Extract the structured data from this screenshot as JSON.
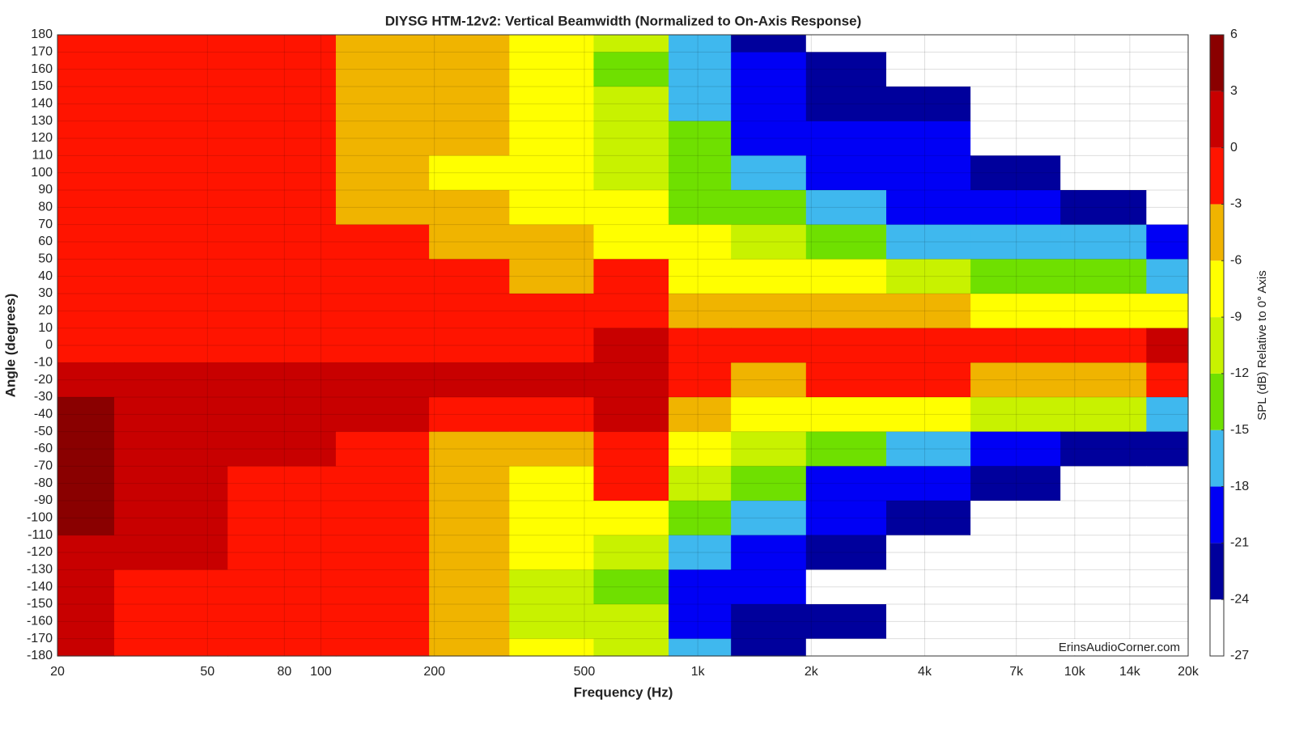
{
  "chart_data": {
    "type": "contour",
    "title": "DIYSG HTM-12v2: Vertical Beamwidth (Normalized to On-Axis Response)",
    "x_label": "Frequency (Hz)",
    "y_label": "Angle (degrees)",
    "colorbar_label": "SPL (dB) Relative to 0° Axis",
    "watermark": "ErinsAudioCorner.com",
    "xscale": "log",
    "grid": true,
    "xlim": [
      20,
      20000
    ],
    "ylim": [
      -180,
      180
    ],
    "xticks": [
      20,
      50,
      80,
      100,
      200,
      500,
      {
        "value": 1000,
        "label": "1k"
      },
      {
        "value": 2000,
        "label": "2k"
      },
      {
        "value": 4000,
        "label": "4k"
      },
      {
        "value": 7000,
        "label": "7k"
      },
      {
        "value": 10000,
        "label": "10k"
      },
      {
        "value": 14000,
        "label": "14k"
      },
      {
        "value": 20000,
        "label": "20k"
      }
    ],
    "yticks": [
      180,
      170,
      160,
      150,
      140,
      130,
      120,
      110,
      100,
      90,
      80,
      70,
      60,
      50,
      40,
      30,
      20,
      10,
      0,
      -10,
      -20,
      -30,
      -40,
      -50,
      -60,
      -70,
      -80,
      -90,
      -100,
      -110,
      -120,
      -130,
      -140,
      -150,
      -160,
      -170,
      -180
    ],
    "levels": [
      -27,
      -24,
      -21,
      -18,
      -15,
      -12,
      -9,
      -6,
      -3,
      0,
      3,
      6
    ],
    "colors": [
      "#ffffff",
      "#00009c",
      "#0000f5",
      "#3fb8ee",
      "#6fe000",
      "#c8f200",
      "#ffff00",
      "#f0b400",
      "#ff1400",
      "#c80000",
      "#8a0000"
    ],
    "x": [
      20,
      40,
      80,
      150,
      250,
      400,
      700,
      1000,
      1500,
      2500,
      4000,
      7000,
      12000,
      20000
    ],
    "y": [
      180,
      160,
      140,
      120,
      100,
      80,
      60,
      40,
      20,
      0,
      -20,
      -40,
      -60,
      -80,
      -100,
      -120,
      -140,
      -160,
      -180
    ],
    "z": [
      [
        -2,
        -2,
        -2,
        -4,
        -5,
        -8,
        -12,
        -18,
        -22,
        -25,
        -26,
        -26,
        -26,
        -26
      ],
      [
        -2,
        -2,
        -2,
        -4,
        -5,
        -9,
        -13,
        -18,
        -21,
        -22,
        -26,
        -26,
        -26,
        -26
      ],
      [
        -2,
        -2,
        -2,
        -4,
        -6,
        -8,
        -12,
        -16,
        -20,
        -22,
        -22,
        -26,
        -26,
        -26
      ],
      [
        -2,
        -2,
        -2,
        -4,
        -6,
        -8,
        -11,
        -14,
        -19,
        -20,
        -21,
        -26,
        -26,
        -26
      ],
      [
        -2,
        -2,
        -2,
        -4,
        -7,
        -8,
        -10,
        -14,
        -17,
        -20,
        -20,
        -22,
        -26,
        -26
      ],
      [
        -2,
        -2,
        -2,
        -4,
        -5,
        -7,
        -9,
        -13,
        -15,
        -18,
        -19,
        -20,
        -22,
        -26
      ],
      [
        -2,
        -2,
        -2,
        -2,
        -4,
        -5,
        -7,
        -9,
        -11,
        -14,
        -16,
        -17,
        -18,
        -20
      ],
      [
        -2,
        -2,
        -2,
        -2,
        -2,
        -4,
        -2,
        -7,
        -7,
        -9,
        -11,
        -13,
        -14,
        -16
      ],
      [
        -1,
        -1,
        -1,
        -1,
        -1,
        -1,
        -1,
        -4,
        -5,
        -5,
        -6,
        -7,
        -7,
        -8
      ],
      [
        -1,
        -1,
        -1,
        -1,
        -1,
        -1,
        1,
        -1,
        -2,
        -1,
        -1,
        -2,
        -2,
        1
      ],
      [
        2,
        1,
        1,
        1,
        1,
        1,
        2,
        -2,
        -4,
        -2,
        -3,
        -4,
        -4,
        -3
      ],
      [
        4,
        2,
        1,
        1,
        -1,
        -2,
        1,
        -6,
        -9,
        -7,
        -9,
        -10,
        -12,
        -16
      ],
      [
        4,
        2,
        1,
        -2,
        -4,
        -5,
        -1,
        -9,
        -12,
        -14,
        -17,
        -20,
        -22,
        -24
      ],
      [
        4,
        2,
        -1,
        -2,
        -4,
        -7,
        -3,
        -11,
        -15,
        -19,
        -20,
        -22,
        -25,
        -26
      ],
      [
        4,
        1,
        -1,
        -2,
        -5,
        -8,
        -9,
        -14,
        -17,
        -20,
        -24,
        -26,
        -26,
        -26
      ],
      [
        2,
        1,
        -1,
        -2,
        -6,
        -9,
        -11,
        -16,
        -19,
        -22,
        -25,
        -26,
        -26,
        -26
      ],
      [
        1,
        -1,
        -1,
        -2,
        -6,
        -10,
        -13,
        -21,
        -21,
        -25,
        -26,
        -26,
        -26,
        -26
      ],
      [
        1,
        -1,
        -1,
        -2,
        -6,
        -10,
        -12,
        -19,
        -22,
        -24,
        -26,
        -26,
        -26,
        -26
      ],
      [
        1,
        -1,
        -1,
        -2,
        -5,
        -9,
        -12,
        -18,
        -22,
        -26,
        -26,
        -26,
        -26,
        -26
      ]
    ]
  }
}
